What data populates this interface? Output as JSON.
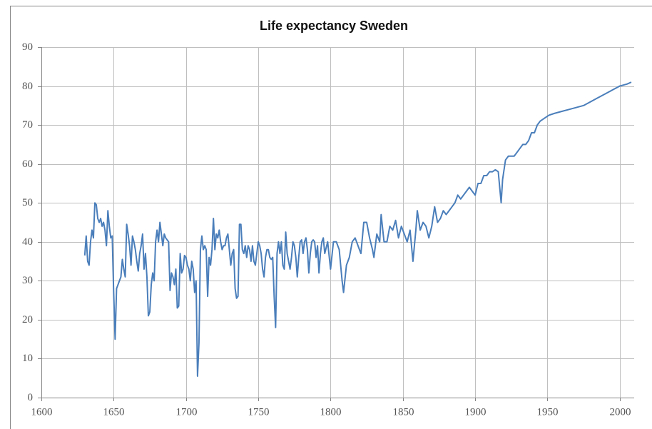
{
  "chart_data": {
    "type": "line",
    "title": "Life expectancy Sweden",
    "xlim": [
      1600,
      2010
    ],
    "xticks": [
      1600,
      1650,
      1700,
      1750,
      1800,
      1850,
      1900,
      1950,
      2000
    ],
    "ylim": [
      0,
      90
    ],
    "yticks": [
      0,
      10,
      20,
      30,
      40,
      50,
      60,
      70,
      80,
      90
    ],
    "grid": true,
    "x": [
      1630,
      1631,
      1632,
      1633,
      1634,
      1635,
      1636,
      1637,
      1638,
      1639,
      1640,
      1641,
      1642,
      1643,
      1644,
      1645,
      1646,
      1647,
      1648,
      1649,
      1650,
      1651,
      1652,
      1653,
      1654,
      1655,
      1656,
      1657,
      1658,
      1659,
      1660,
      1661,
      1662,
      1663,
      1664,
      1665,
      1666,
      1667,
      1668,
      1669,
      1670,
      1671,
      1672,
      1673,
      1674,
      1675,
      1676,
      1677,
      1678,
      1679,
      1680,
      1681,
      1682,
      1683,
      1684,
      1685,
      1686,
      1687,
      1688,
      1689,
      1690,
      1691,
      1692,
      1693,
      1694,
      1695,
      1696,
      1697,
      1698,
      1699,
      1700,
      1701,
      1702,
      1703,
      1704,
      1705,
      1706,
      1707,
      1708,
      1709,
      1710,
      1711,
      1712,
      1713,
      1714,
      1715,
      1716,
      1717,
      1718,
      1719,
      1720,
      1721,
      1722,
      1723,
      1724,
      1725,
      1726,
      1727,
      1728,
      1729,
      1730,
      1731,
      1732,
      1733,
      1734,
      1735,
      1736,
      1737,
      1738,
      1739,
      1740,
      1741,
      1742,
      1743,
      1744,
      1745,
      1746,
      1747,
      1748,
      1749,
      1750,
      1751,
      1752,
      1753,
      1754,
      1755,
      1756,
      1757,
      1758,
      1759,
      1760,
      1761,
      1762,
      1763,
      1764,
      1765,
      1766,
      1767,
      1768,
      1769,
      1770,
      1771,
      1772,
      1773,
      1774,
      1775,
      1776,
      1777,
      1778,
      1779,
      1780,
      1781,
      1782,
      1783,
      1784,
      1785,
      1786,
      1787,
      1788,
      1789,
      1790,
      1791,
      1792,
      1793,
      1794,
      1795,
      1796,
      1798,
      1800,
      1802,
      1804,
      1806,
      1808,
      1809,
      1811,
      1813,
      1815,
      1817,
      1819,
      1821,
      1823,
      1825,
      1827,
      1829,
      1830,
      1832,
      1834,
      1835,
      1837,
      1839,
      1841,
      1843,
      1845,
      1847,
      1849,
      1851,
      1853,
      1855,
      1857,
      1859,
      1860,
      1862,
      1864,
      1866,
      1868,
      1870,
      1872,
      1874,
      1876,
      1878,
      1880,
      1882,
      1884,
      1886,
      1888,
      1890,
      1892,
      1894,
      1896,
      1898,
      1900,
      1902,
      1904,
      1906,
      1908,
      1910,
      1912,
      1914,
      1916,
      1918,
      1919,
      1921,
      1923,
      1925,
      1927,
      1929,
      1931,
      1933,
      1935,
      1937,
      1939,
      1941,
      1943,
      1945,
      1947,
      1949,
      1951,
      1955,
      1960,
      1965,
      1970,
      1975,
      1980,
      1985,
      1990,
      1995,
      2000,
      2005,
      2008
    ],
    "series": [
      {
        "color": "#4a7ebb",
        "values": [
          36.5,
          41.5,
          35,
          34,
          40,
          43,
          41,
          50,
          49.5,
          46,
          45,
          46,
          44,
          45,
          43,
          39,
          48,
          44,
          41,
          41.5,
          27,
          15,
          28,
          29,
          30,
          31,
          35.5,
          33,
          31,
          44.5,
          42,
          39,
          34,
          41.5,
          40,
          38,
          35,
          32.5,
          37,
          39,
          42,
          33,
          37,
          31,
          21,
          22,
          29,
          32,
          30,
          40,
          43,
          40,
          45,
          42,
          39,
          42,
          41,
          40.5,
          40,
          27.5,
          32,
          31,
          29,
          33,
          23,
          23.5,
          37,
          32,
          33,
          36.5,
          36,
          34,
          33,
          30,
          35,
          33,
          27,
          30,
          5.5,
          14,
          38,
          41.5,
          38,
          39,
          38,
          26,
          36,
          34,
          38,
          46,
          38,
          42,
          41,
          43,
          40,
          38,
          39,
          39,
          41,
          42,
          38,
          34,
          37,
          38,
          28,
          25.5,
          26,
          44.5,
          44.5,
          38,
          37,
          39,
          36,
          39,
          38,
          35,
          39,
          35,
          34,
          37,
          40,
          39,
          37,
          33,
          31,
          36,
          38,
          38,
          36,
          35.5,
          36,
          26,
          18,
          37,
          40,
          37,
          40,
          34,
          33,
          42.5,
          37,
          35,
          33,
          36,
          40,
          39,
          36,
          31,
          36,
          40,
          40.5,
          37,
          40,
          41,
          38,
          32,
          37,
          40,
          40.5,
          40,
          36,
          39,
          32,
          37,
          40,
          41,
          37,
          40,
          33,
          40,
          40,
          38,
          30,
          27,
          34,
          36,
          40,
          41,
          39,
          37,
          45,
          45,
          41,
          38,
          36,
          42,
          40,
          47,
          40,
          40,
          44,
          43,
          45.5,
          41,
          44,
          42,
          40,
          43,
          35,
          43,
          48,
          43,
          45,
          44,
          41,
          44,
          49,
          45,
          46,
          48,
          47,
          48,
          49,
          50,
          52,
          51,
          52,
          53,
          54,
          53,
          52,
          55,
          55,
          57,
          57,
          58,
          58,
          58.5,
          58,
          50,
          56,
          61,
          62,
          62,
          62,
          63,
          64,
          65,
          65,
          66,
          68,
          68,
          70,
          71,
          71.5,
          72,
          72.5,
          73,
          73.5,
          74,
          74.5,
          75,
          76,
          77,
          78,
          79,
          80,
          80.5,
          81
        ]
      }
    ]
  }
}
